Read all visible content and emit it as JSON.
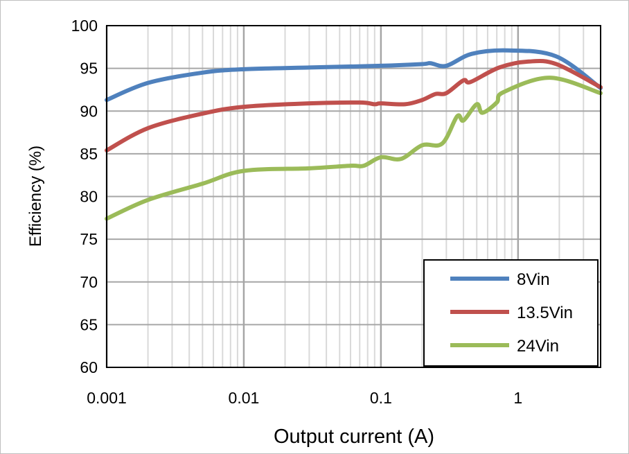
{
  "chart_data": {
    "type": "line",
    "title": "",
    "xlabel": "Output current (A)",
    "ylabel": "Efficiency (%)",
    "xscale": "log",
    "xlim": [
      0.001,
      4
    ],
    "ylim": [
      60,
      100
    ],
    "xticks": [
      0.001,
      0.01,
      0.1,
      1
    ],
    "xtick_labels": [
      "0.001",
      "0.01",
      "0.1",
      "1"
    ],
    "yticks": [
      60,
      65,
      70,
      75,
      80,
      85,
      90,
      95,
      100
    ],
    "ytick_labels": [
      "60",
      "65",
      "70",
      "75",
      "80",
      "85",
      "90",
      "95",
      "100"
    ],
    "grid": true,
    "legend_position": "bottom-right",
    "series": [
      {
        "name": "8Vin",
        "color": "#4f81bd",
        "x": [
          0.001,
          0.002,
          0.005,
          0.01,
          0.03,
          0.1,
          0.2,
          0.23,
          0.3,
          0.46,
          0.85,
          1.9,
          4
        ],
        "y": [
          91.3,
          93.3,
          94.5,
          94.9,
          95.1,
          95.3,
          95.5,
          95.6,
          95.3,
          96.7,
          97.1,
          96.4,
          92.7
        ]
      },
      {
        "name": "13.5Vin",
        "color": "#c0504d",
        "x": [
          0.001,
          0.002,
          0.005,
          0.01,
          0.03,
          0.07,
          0.09,
          0.1,
          0.15,
          0.2,
          0.25,
          0.3,
          0.4,
          0.45,
          0.73,
          1.2,
          1.9,
          4
        ],
        "y": [
          85.4,
          88.0,
          89.7,
          90.5,
          90.9,
          91.0,
          90.8,
          90.9,
          90.8,
          91.3,
          92.0,
          92.1,
          93.6,
          93.4,
          95.1,
          95.8,
          95.5,
          92.8
        ]
      },
      {
        "name": "24Vin",
        "color": "#9bbb59",
        "x": [
          0.001,
          0.002,
          0.005,
          0.01,
          0.03,
          0.06,
          0.075,
          0.1,
          0.14,
          0.2,
          0.28,
          0.36,
          0.4,
          0.5,
          0.55,
          0.7,
          0.78,
          1.7,
          4
        ],
        "y": [
          77.4,
          79.6,
          81.5,
          83.0,
          83.3,
          83.6,
          83.6,
          84.6,
          84.4,
          86.0,
          86.2,
          89.4,
          88.9,
          90.8,
          89.8,
          91.0,
          92.2,
          93.9,
          92.1
        ]
      }
    ]
  }
}
